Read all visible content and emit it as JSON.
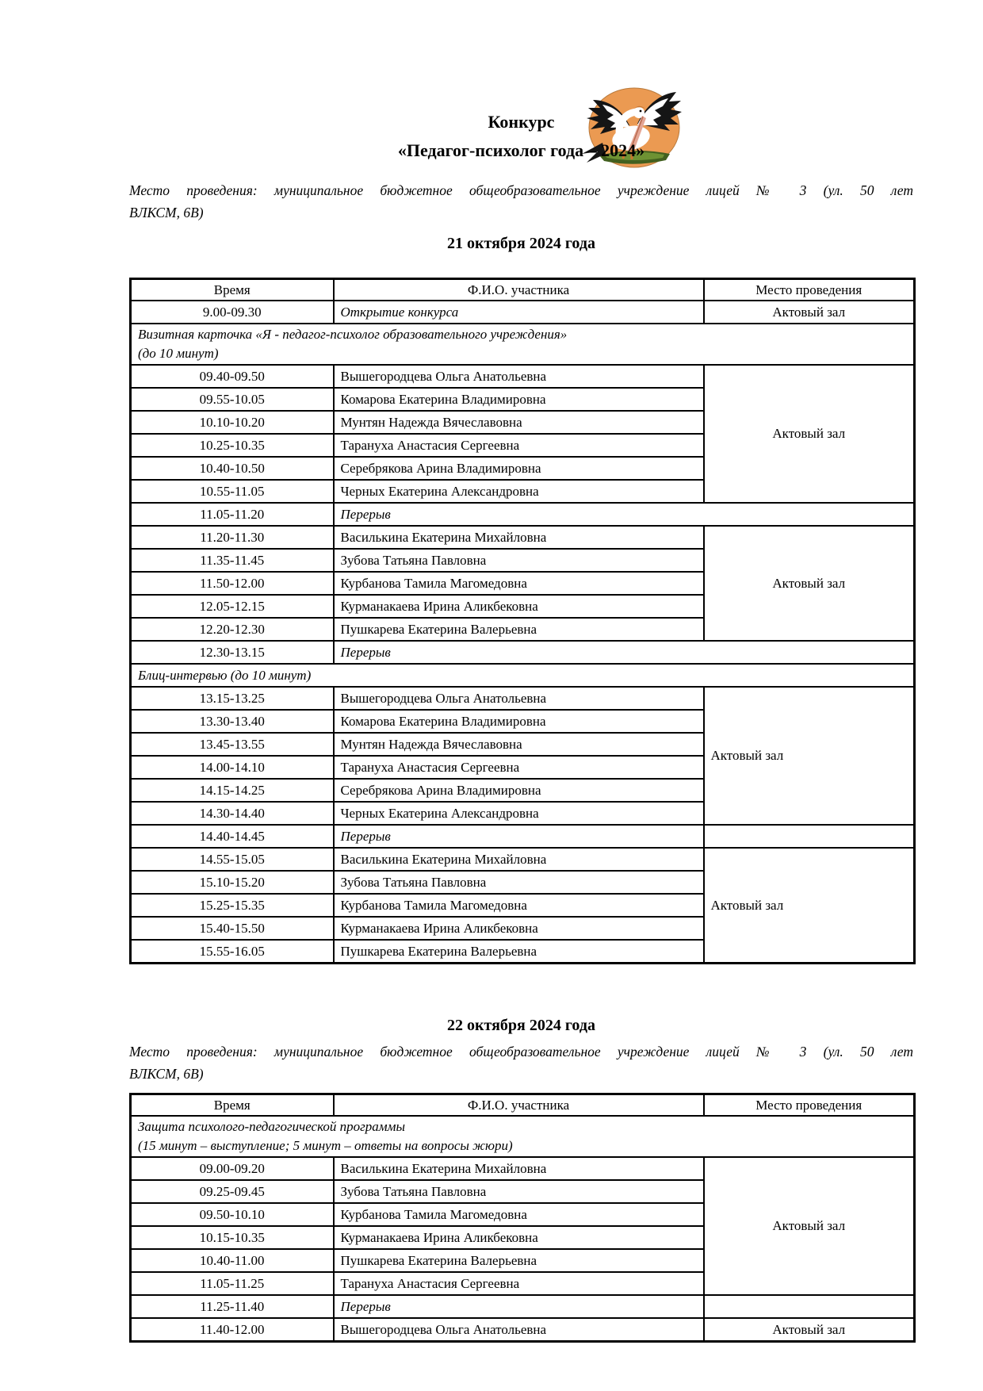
{
  "document": {
    "title_line1": "Конкурс",
    "title_line2": "«Педагог-психолог года – 2024»"
  },
  "logo": {
    "label": "pelican-emblem",
    "circle_color": "#EB9A52",
    "grass_dark": "#42601F",
    "grass_light": "#6E9233",
    "bird_white": "#FFFFFF",
    "feather_black": "#151515",
    "beak_color": "#E4A695",
    "beak_line": "#B96A4E",
    "leg_color": "#C9762F"
  },
  "day1": {
    "venue_lines": [
      "Место проведения: муниципальное бюджетное общеобразовательное учреждение лицей № 3 (ул. 50 лет",
      "ВЛКСМ, 6В)"
    ],
    "heading": "21 октября 2024 года"
  },
  "day2": {
    "heading": "22 октября 2024 года",
    "venue_lines": [
      "Место проведения: муниципальное бюджетное общеобразовательное учреждение лицей № 3 (ул. 50 лет",
      "ВЛКСМ, 6В)"
    ]
  },
  "tables": [
    {
      "id": "day1",
      "columns": [
        "Время",
        "Ф.И.О. участника",
        "Место проведения"
      ],
      "rows": [
        {
          "time": "9.00-09.30",
          "name": "Открытие конкурса",
          "italic": true,
          "place": "Актовый зал",
          "place_align": "center"
        },
        {
          "section": [
            "Визитная карточка «Я - педагог-психолог образовательного учреждения»",
            "(до 10 минут)"
          ]
        },
        {
          "time": "09.40-09.50",
          "name": "Вышегородцева Ольга Анатольевна",
          "place": "Актовый зал",
          "rowspan": 6,
          "place_align": "center"
        },
        {
          "time": "09.55-10.05",
          "name": "Комарова Екатерина Владимировна"
        },
        {
          "time": "10.10-10.20",
          "name": "Мунтян Надежда Вячеславовна"
        },
        {
          "time": "10.25-10.35",
          "name": "Тарануха Анастасия Сергеевна"
        },
        {
          "time": "10.40-10.50",
          "name": "Серебрякова Арина Владимировна"
        },
        {
          "time": "10.55-11.05",
          "name": "Черных Екатерина Александровна"
        },
        {
          "time": "11.05-11.20",
          "name": "Перерыв",
          "italic": true,
          "span": true
        },
        {
          "time": "11.20-11.30",
          "name": "Василькина Екатерина Михайловна",
          "place": "Актовый зал",
          "rowspan": 5,
          "place_align": "center"
        },
        {
          "time": "11.35-11.45",
          "name": "Зубова Татьяна Павловна"
        },
        {
          "time": "11.50-12.00",
          "name": "Курбанова Тамила Магомедовна"
        },
        {
          "time": "12.05-12.15",
          "name": "Курманакаева Ирина Аликбековна"
        },
        {
          "time": "12.20-12.30",
          "name": "Пушкарева Екатерина Валерьевна"
        },
        {
          "time": "12.30-13.15",
          "name": "Перерыв",
          "italic": true,
          "span": true
        },
        {
          "section": [
            "Блиц-интервью (до 10 минут)"
          ]
        },
        {
          "time": "13.15-13.25",
          "name": "Вышегородцева Ольга Анатольевна",
          "place": "Актовый зал",
          "rowspan": 6,
          "place_align": "left"
        },
        {
          "time": "13.30-13.40",
          "name": "Комарова Екатерина Владимировна"
        },
        {
          "time": "13.45-13.55",
          "name": "Мунтян Надежда Вячеславовна"
        },
        {
          "time": "14.00-14.10",
          "name": "Тарануха Анастасия Сергеевна"
        },
        {
          "time": "14.15-14.25",
          "name": "Серебрякова Арина Владимировна"
        },
        {
          "time": "14.30-14.40",
          "name": "Черных Екатерина Александровна"
        },
        {
          "time": "14.40-14.45",
          "name": "Перерыв",
          "italic": true,
          "place": "",
          "place_align": "center"
        },
        {
          "time": "14.55-15.05",
          "name": "Василькина Екатерина Михайловна",
          "place": "Актовый зал",
          "rowspan": 5,
          "place_align": "left"
        },
        {
          "time": "15.10-15.20",
          "name": "Зубова Татьяна Павловна"
        },
        {
          "time": "15.25-15.35",
          "name": "Курбанова Тамила Магомедовна"
        },
        {
          "time": "15.40-15.50",
          "name": "Курманакаева Ирина Аликбековна"
        },
        {
          "time": "15.55-16.05",
          "name": "Пушкарева Екатерина Валерьевна"
        }
      ]
    },
    {
      "id": "day2",
      "columns": [
        "Время",
        "Ф.И.О. участника",
        "Место проведения"
      ],
      "rows": [
        {
          "section": [
            "Защита психолого-педагогической программы",
            "(15 минут – выступление; 5 минут – ответы на вопросы жюри)"
          ]
        },
        {
          "time": "09.00-09.20",
          "name": "Василькина Екатерина Михайловна",
          "place": "Актовый зал",
          "rowspan": 6,
          "place_align": "center"
        },
        {
          "time": "09.25-09.45",
          "name": "Зубова Татьяна Павловна"
        },
        {
          "time": "09.50-10.10",
          "name": "Курбанова Тамила Магомедовна"
        },
        {
          "time": "10.15-10.35",
          "name": "Курманакаева Ирина Аликбековна"
        },
        {
          "time": "10.40-11.00",
          "name": "Пушкарева Екатерина Валерьевна"
        },
        {
          "time": "11.05-11.25",
          "name": "Тарануха Анастасия Сергеевна"
        },
        {
          "time": "11.25-11.40",
          "name": "Перерыв",
          "italic": true,
          "place": "",
          "place_align": "center"
        },
        {
          "time": "11.40-12.00",
          "name": "Вышегородцева Ольга Анатольевна",
          "place": "Актовый зал",
          "place_align": "center"
        }
      ]
    }
  ]
}
